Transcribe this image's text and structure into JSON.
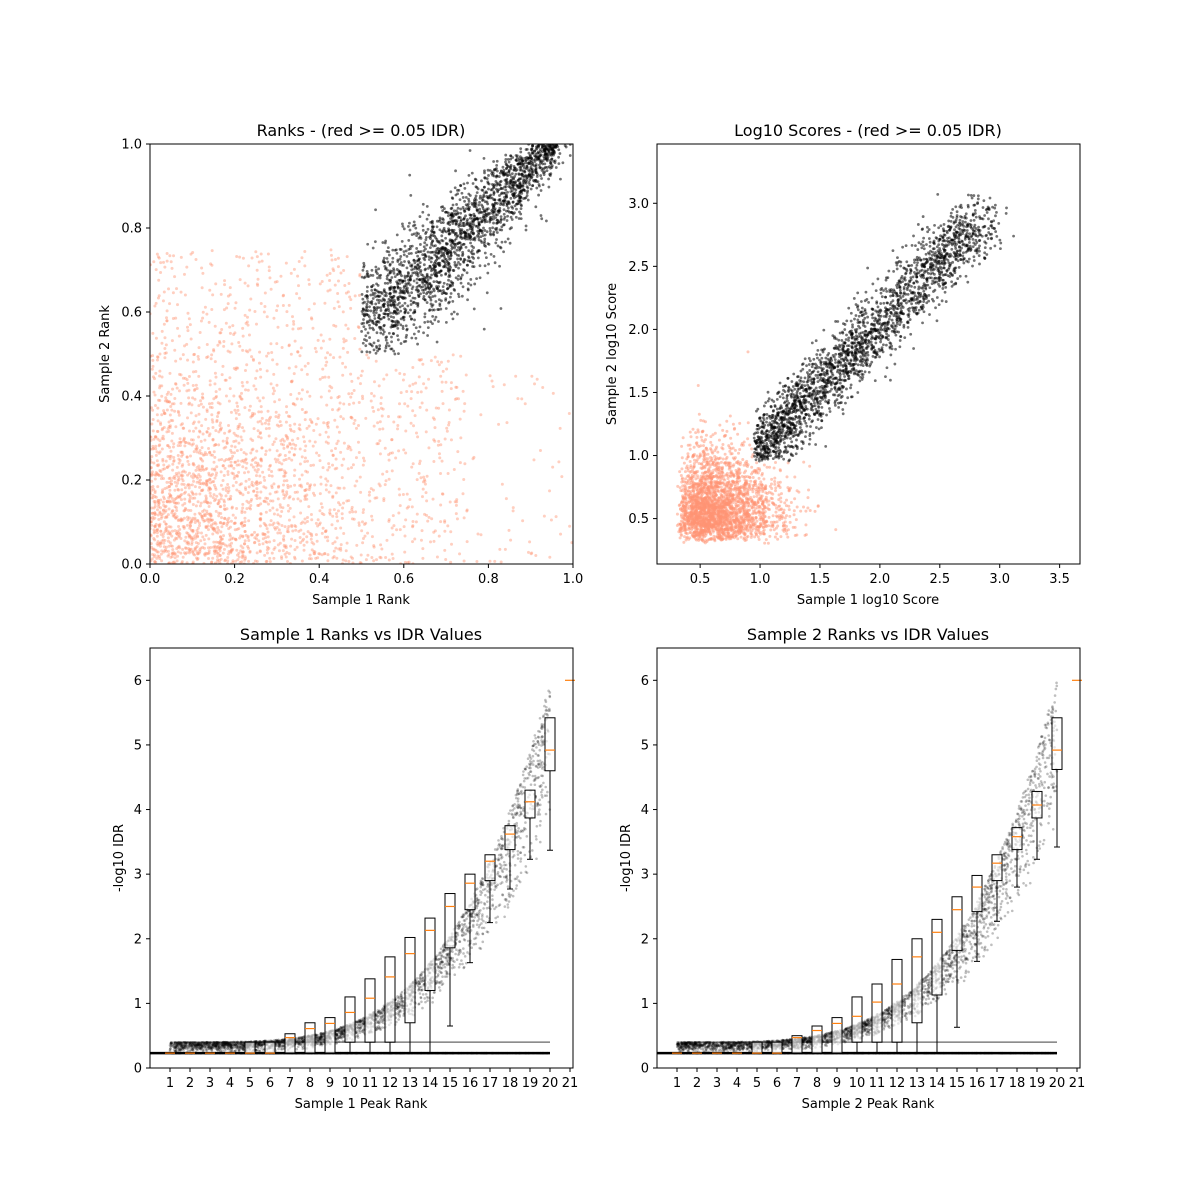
{
  "chart_data": [
    {
      "type": "scatter",
      "title": "Ranks - (red >= 0.05 IDR)",
      "xlabel": "Sample 1 Rank",
      "ylabel": "Sample 2 Rank",
      "xlim": [
        0.0,
        1.0
      ],
      "ylim": [
        0.0,
        1.0
      ],
      "xticks": [
        "0.0",
        "0.2",
        "0.4",
        "0.6",
        "0.8",
        "1.0"
      ],
      "yticks": [
        "0.0",
        "0.2",
        "0.4",
        "0.6",
        "0.8",
        "1.0"
      ],
      "grid": false,
      "series": [
        {
          "color": "#ff9473",
          "description_points": [
            [
              0.05,
              0.1
            ],
            [
              0.2,
              0.3
            ],
            [
              0.35,
              0.55
            ],
            [
              0.1,
              0.7
            ],
            [
              0.6,
              0.2
            ],
            [
              0.8,
              0.1
            ],
            [
              0.45,
              0.4
            ]
          ]
        },
        {
          "color": "#000000",
          "description_points": [
            [
              0.55,
              0.6
            ],
            [
              0.7,
              0.75
            ],
            [
              0.85,
              0.85
            ],
            [
              0.95,
              0.95
            ],
            [
              0.6,
              0.7
            ],
            [
              0.8,
              0.8
            ]
          ]
        }
      ]
    },
    {
      "type": "scatter",
      "title": "Log10 Scores - (red >= 0.05 IDR)",
      "xlabel": "Sample 1 log10 Score",
      "ylabel": "Sample 2 log10 Score",
      "xlim": [
        0.14,
        3.67
      ],
      "ylim": [
        0.14,
        3.47
      ],
      "xticks": [
        "0.5",
        "1.0",
        "1.5",
        "2.0",
        "2.5",
        "3.0",
        "3.5"
      ],
      "yticks": [
        "0.5",
        "1.0",
        "1.5",
        "2.0",
        "2.5",
        "3.0"
      ],
      "grid": false,
      "series": [
        {
          "color": "#ff9473",
          "description_points": [
            [
              0.4,
              0.5
            ],
            [
              0.7,
              0.7
            ],
            [
              0.9,
              0.9
            ],
            [
              0.5,
              1.2
            ],
            [
              1.3,
              0.6
            ],
            [
              1.8,
              0.5
            ]
          ]
        },
        {
          "color": "#000000",
          "description_points": [
            [
              1.0,
              1.0
            ],
            [
              1.3,
              1.4
            ],
            [
              1.7,
              1.8
            ],
            [
              2.1,
              2.2
            ],
            [
              2.5,
              2.6
            ],
            [
              2.8,
              2.9
            ]
          ]
        }
      ]
    },
    {
      "type": "box",
      "title": "Sample 1 Ranks vs IDR Values",
      "xlabel": "Sample 1 Peak Rank",
      "ylabel": "-log10 IDR",
      "xlim": [
        0,
        21
      ],
      "ylim": [
        0,
        6.5
      ],
      "xticks": [
        "1",
        "2",
        "3",
        "4",
        "5",
        "6",
        "7",
        "8",
        "9",
        "10",
        "11",
        "12",
        "13",
        "14",
        "15",
        "16",
        "17",
        "18",
        "19",
        "20",
        "21"
      ],
      "yticks": [
        "0",
        "1",
        "2",
        "3",
        "4",
        "5",
        "6"
      ],
      "medians": [
        0.23,
        0.23,
        0.23,
        0.23,
        0.23,
        0.23,
        0.47,
        0.61,
        0.69,
        0.86,
        1.08,
        1.41,
        1.77,
        2.13,
        2.5,
        2.86,
        3.2,
        3.62,
        4.12,
        4.92,
        6.0
      ],
      "q1": [
        0.23,
        0.23,
        0.23,
        0.23,
        0.23,
        0.23,
        0.23,
        0.23,
        0.23,
        0.4,
        0.4,
        0.4,
        0.7,
        1.2,
        1.86,
        2.45,
        2.9,
        3.38,
        3.87,
        4.6,
        6.0
      ],
      "q3": [
        0.23,
        0.23,
        0.23,
        0.23,
        0.4,
        0.4,
        0.53,
        0.7,
        0.78,
        1.1,
        1.38,
        1.72,
        2.02,
        2.32,
        2.7,
        3.0,
        3.3,
        3.75,
        4.3,
        5.42,
        6.0
      ],
      "whisker_low": [
        0.23,
        0.23,
        0.23,
        0.23,
        0.23,
        0.23,
        0.23,
        0.23,
        0.23,
        0.23,
        0.23,
        0.23,
        0.23,
        0.23,
        0.65,
        1.63,
        2.25,
        2.77,
        3.23,
        3.37,
        6.0
      ],
      "whisker_high": [
        0.23,
        0.23,
        0.23,
        0.23,
        0.4,
        0.4,
        0.53,
        0.7,
        0.78,
        1.1,
        1.38,
        1.72,
        2.02,
        2.32,
        2.7,
        3.0,
        3.3,
        3.75,
        4.3,
        5.42,
        6.0
      ]
    },
    {
      "type": "box",
      "title": "Sample 2 Ranks vs IDR Values",
      "xlabel": "Sample 2 Peak Rank",
      "ylabel": "-log10 IDR",
      "xlim": [
        0,
        21
      ],
      "ylim": [
        0,
        6.5
      ],
      "xticks": [
        "1",
        "2",
        "3",
        "4",
        "5",
        "6",
        "7",
        "8",
        "9",
        "10",
        "11",
        "12",
        "13",
        "14",
        "15",
        "16",
        "17",
        "18",
        "19",
        "20",
        "21"
      ],
      "yticks": [
        "0",
        "1",
        "2",
        "3",
        "4",
        "5",
        "6"
      ],
      "medians": [
        0.23,
        0.23,
        0.23,
        0.23,
        0.23,
        0.23,
        0.47,
        0.58,
        0.69,
        0.8,
        1.02,
        1.3,
        1.72,
        2.1,
        2.45,
        2.8,
        3.17,
        3.58,
        4.07,
        4.92,
        6.0
      ],
      "q1": [
        0.23,
        0.23,
        0.23,
        0.23,
        0.23,
        0.23,
        0.23,
        0.23,
        0.23,
        0.4,
        0.4,
        0.4,
        0.7,
        1.13,
        1.82,
        2.42,
        2.9,
        3.38,
        3.87,
        4.62,
        6.0
      ],
      "q3": [
        0.23,
        0.23,
        0.23,
        0.23,
        0.4,
        0.4,
        0.5,
        0.65,
        0.78,
        1.1,
        1.3,
        1.68,
        2.0,
        2.3,
        2.65,
        2.98,
        3.3,
        3.72,
        4.28,
        5.42,
        6.0
      ],
      "whisker_low": [
        0.23,
        0.23,
        0.23,
        0.23,
        0.23,
        0.23,
        0.23,
        0.23,
        0.23,
        0.23,
        0.23,
        0.23,
        0.23,
        0.23,
        0.63,
        1.65,
        2.27,
        2.8,
        3.23,
        3.42,
        6.0
      ],
      "whisker_high": [
        0.23,
        0.23,
        0.23,
        0.23,
        0.4,
        0.4,
        0.5,
        0.65,
        0.78,
        1.1,
        1.3,
        1.68,
        2.0,
        2.3,
        2.65,
        2.98,
        3.3,
        3.72,
        4.28,
        5.42,
        6.0
      ]
    }
  ]
}
